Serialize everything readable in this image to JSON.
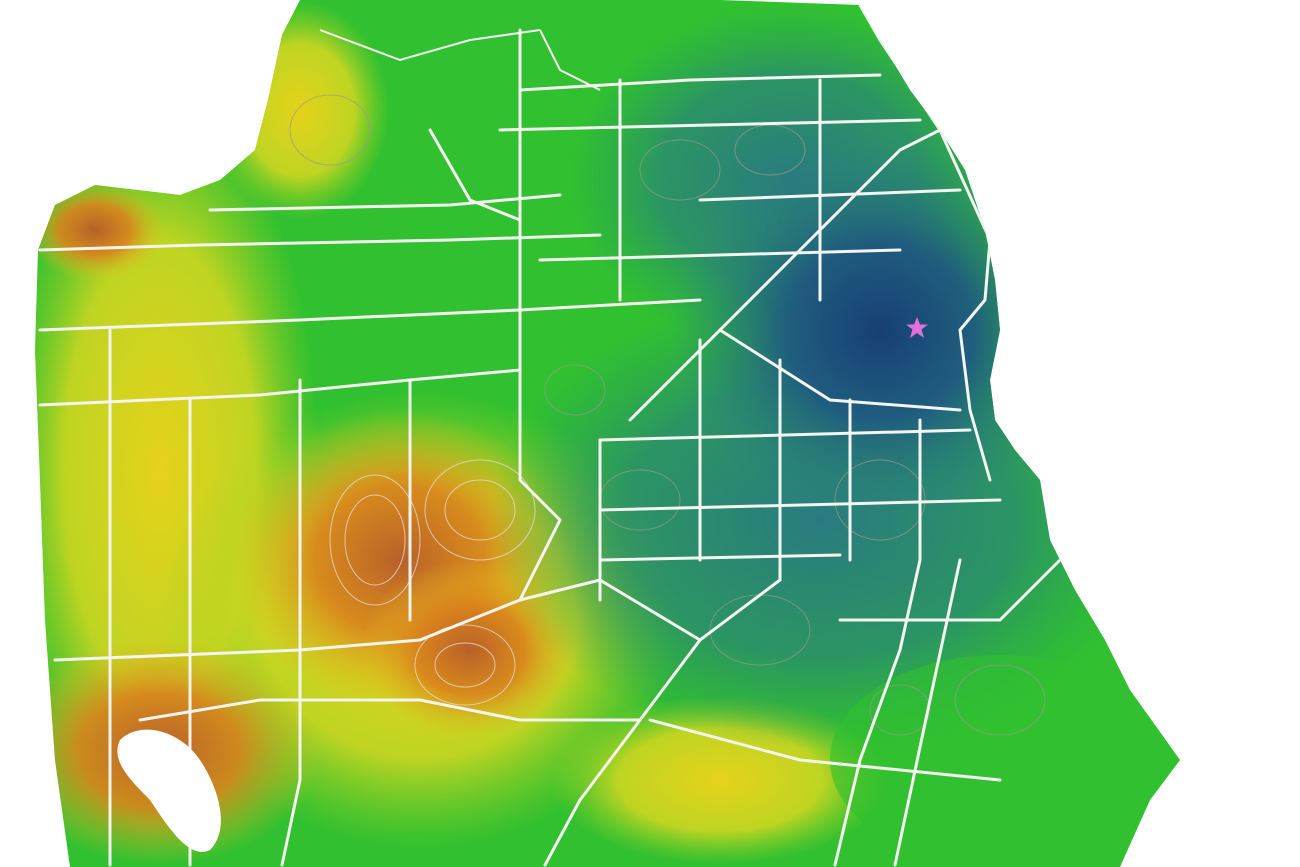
{
  "map": {
    "palette": {
      "far": "#d9731c",
      "mid_far": "#e6d21a",
      "mid": "#2fc22a",
      "near": "#2a8a7a",
      "nearest": "#173f74",
      "background": "#ffffff",
      "roads": "#f4f4f0",
      "contours": "#9a9a8a",
      "water": "#ffffff"
    },
    "marker": {
      "icon": "star-icon",
      "color": "#e070d8"
    }
  }
}
